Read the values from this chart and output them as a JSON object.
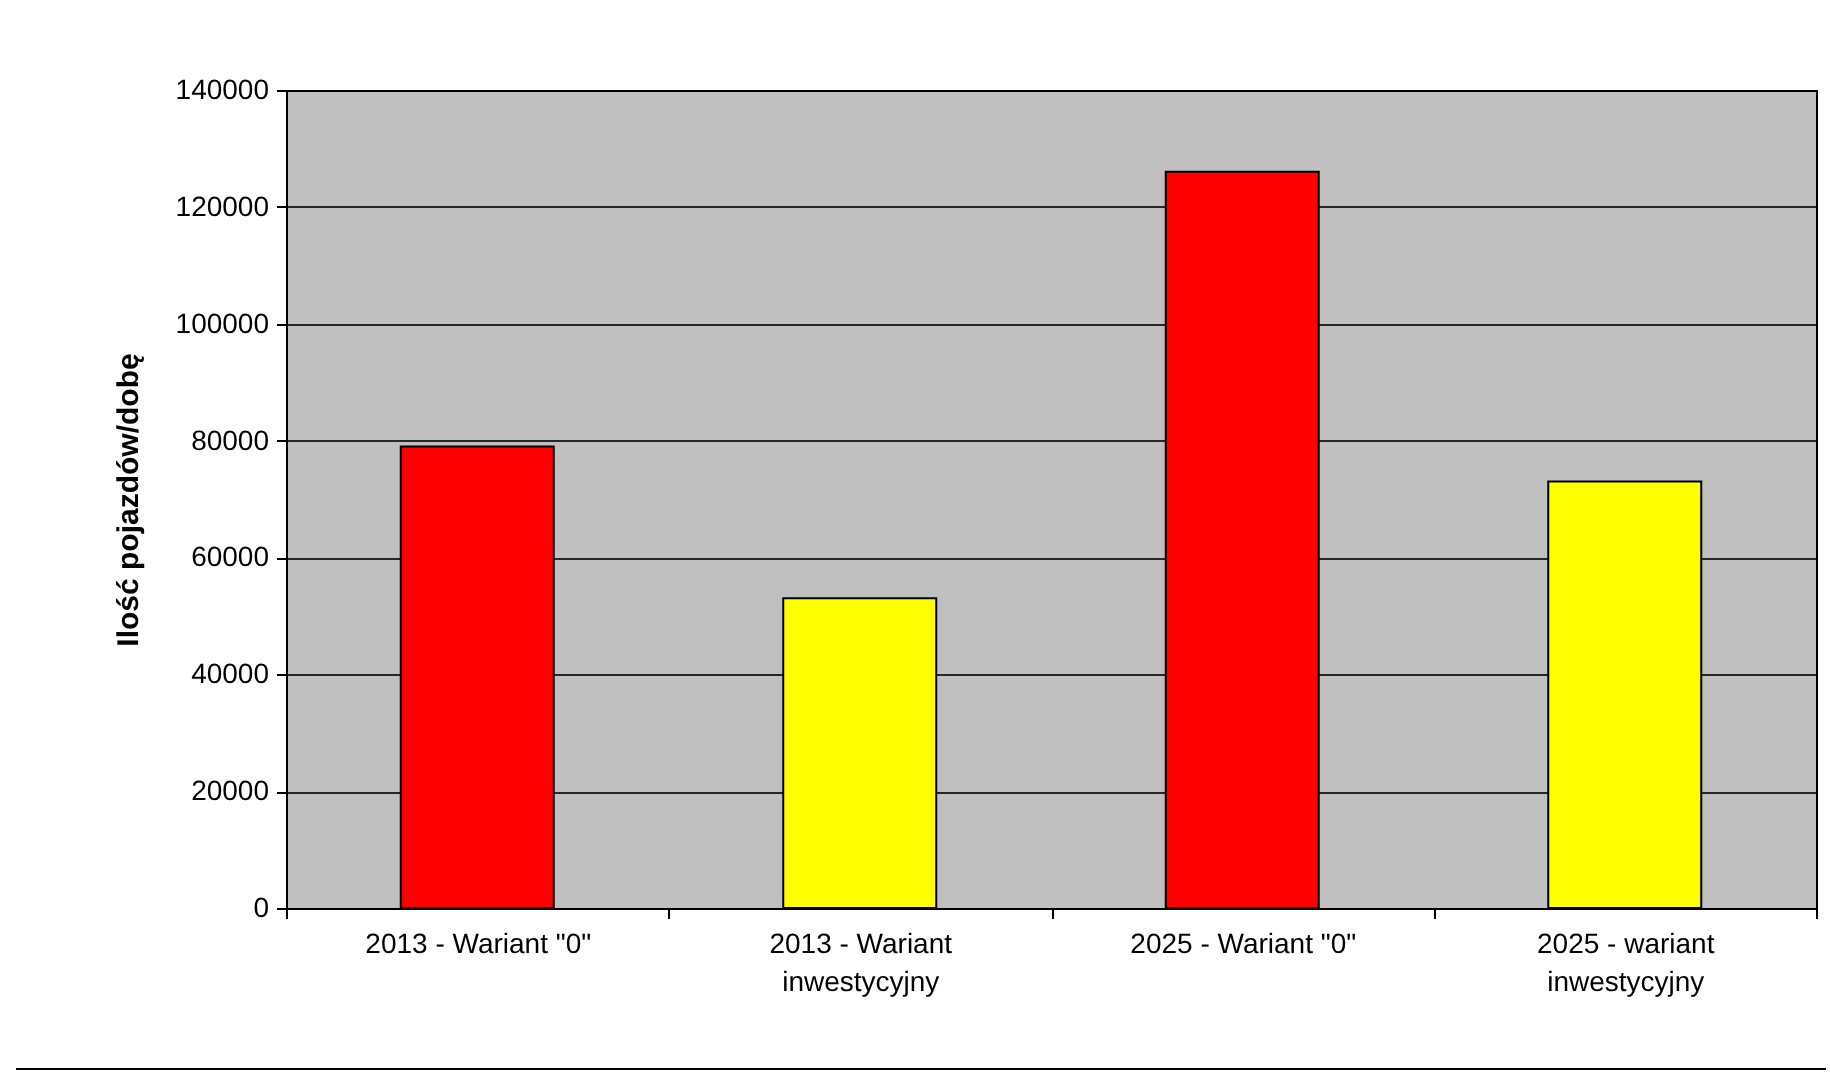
{
  "chart_data": {
    "type": "bar",
    "ylabel": "Ilość pojazdów/dobę",
    "categories": [
      "2013 - Wariant \"0\"",
      "2013 - Wariant inwestycyjny",
      "2025 - Wariant \"0\"",
      "2025 - wariant inwestycyjny"
    ],
    "values": [
      79000,
      53000,
      126000,
      73000
    ],
    "colors": [
      "#ff0000",
      "#ffff00",
      "#ff0000",
      "#ffff00"
    ],
    "ylim": [
      0,
      140000
    ],
    "yticks": [
      0,
      20000,
      40000,
      60000,
      80000,
      100000,
      120000,
      140000
    ],
    "grid": "y",
    "legend": false
  }
}
